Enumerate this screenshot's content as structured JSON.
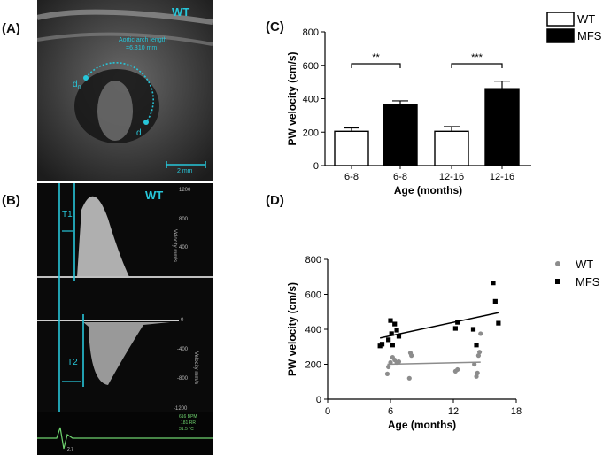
{
  "panels": {
    "a": "(A)",
    "b": "(B)",
    "c": "(C)",
    "d": "(D)"
  },
  "ultrasound_a": {
    "tag": "WT",
    "measure_title": "Aortic arch length",
    "measure_value": "=6.310 mm",
    "start_label": "d",
    "start_subscript": "0",
    "end_label": "d",
    "scale_label": "2 mm"
  },
  "doppler_b": {
    "tag": "WT",
    "t1": "T1",
    "t2": "T2",
    "top_ticks": [
      "1200",
      "800",
      "400"
    ],
    "top_axis": "Velocity mm/s",
    "bottom_ticks": [
      "0",
      "-400",
      "-800",
      "-1200"
    ],
    "bottom_axis": "Velocity mm/s",
    "readouts": [
      "616 BPM",
      "181 RR",
      "31.5 °C"
    ],
    "marker": "2.7"
  },
  "colors": {
    "wt_bar": "#ffffff",
    "mfs_bar": "#000000",
    "wt_point": "#8c8c8c",
    "mfs_point": "#000000",
    "cyan_annotation": "#27c6d9"
  },
  "chart_data": [
    {
      "panel": "C",
      "type": "bar",
      "ylabel": "PW velocity (cm/s)",
      "xlabel": "Age (months)",
      "ylim": [
        0,
        800
      ],
      "yticks": [
        0,
        200,
        400,
        600,
        800
      ],
      "categories": [
        "6-8",
        "6-8",
        "12-16",
        "12-16"
      ],
      "groups": [
        "WT",
        "MFS",
        "WT",
        "MFS"
      ],
      "values": [
        205,
        365,
        205,
        460
      ],
      "errors": [
        20,
        22,
        28,
        45
      ],
      "legend": [
        "WT",
        "MFS"
      ],
      "legend_position": "top-right",
      "significance": [
        {
          "pair": [
            0,
            1
          ],
          "label": "**"
        },
        {
          "pair": [
            2,
            3
          ],
          "label": "***"
        }
      ]
    },
    {
      "panel": "D",
      "type": "scatter",
      "ylabel": "PW velocity (cm/s)",
      "xlabel": "Age (months)",
      "xlim": [
        0,
        18
      ],
      "xticks": [
        0,
        6,
        12,
        18
      ],
      "ylim": [
        0,
        800
      ],
      "yticks": [
        0,
        200,
        400,
        600,
        800
      ],
      "legend_position": "right",
      "series": [
        {
          "name": "WT",
          "marker": "circle",
          "points": [
            [
              5.7,
              145
            ],
            [
              5.8,
              185
            ],
            [
              6.0,
              210
            ],
            [
              6.2,
              240
            ],
            [
              6.4,
              225
            ],
            [
              6.6,
              210
            ],
            [
              6.8,
              215
            ],
            [
              7.8,
              120
            ],
            [
              7.9,
              265
            ],
            [
              8.0,
              250
            ],
            [
              12.2,
              160
            ],
            [
              12.4,
              170
            ],
            [
              14.0,
              200
            ],
            [
              14.2,
              130
            ],
            [
              14.3,
              150
            ],
            [
              14.4,
              250
            ],
            [
              14.5,
              270
            ],
            [
              14.6,
              375
            ]
          ],
          "trend": [
            [
              5.7,
              200
            ],
            [
              14.6,
              212
            ]
          ]
        },
        {
          "name": "MFS",
          "marker": "square",
          "points": [
            [
              5.0,
              305
            ],
            [
              5.2,
              315
            ],
            [
              5.8,
              340
            ],
            [
              6.0,
              450
            ],
            [
              6.1,
              375
            ],
            [
              6.2,
              310
            ],
            [
              6.4,
              430
            ],
            [
              6.6,
              395
            ],
            [
              6.8,
              360
            ],
            [
              12.2,
              405
            ],
            [
              12.4,
              440
            ],
            [
              13.9,
              400
            ],
            [
              14.2,
              310
            ],
            [
              15.8,
              665
            ],
            [
              16.0,
              560
            ],
            [
              16.3,
              435
            ]
          ],
          "trend": [
            [
              5.0,
              350
            ],
            [
              16.3,
              495
            ]
          ]
        }
      ]
    }
  ]
}
